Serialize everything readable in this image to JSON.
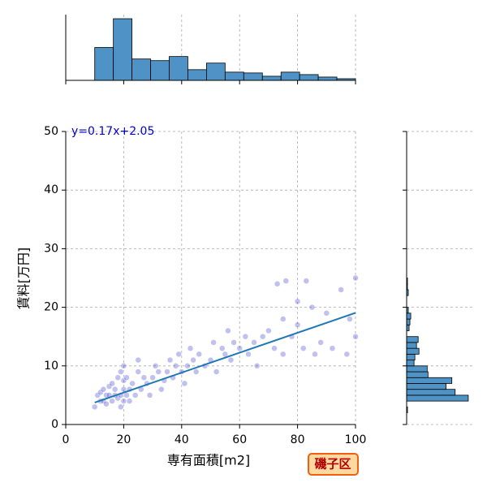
{
  "chart_data": [
    {
      "type": "scatter",
      "xlabel": "専有面積[m2]",
      "ylabel": "賃料[万円]",
      "xlim": [
        0,
        100
      ],
      "ylim": [
        0,
        50
      ],
      "xticks": [
        0,
        20,
        40,
        60,
        80,
        100
      ],
      "yticks": [
        0,
        10,
        20,
        30,
        40,
        50
      ],
      "grid": true,
      "color": "#3333cc",
      "x": [
        10,
        11,
        12,
        12,
        13,
        13,
        14,
        14,
        15,
        15,
        16,
        16,
        17,
        17,
        18,
        18,
        19,
        19,
        19,
        20,
        20,
        20,
        20,
        21,
        21,
        22,
        22,
        23,
        24,
        25,
        25,
        26,
        27,
        28,
        29,
        30,
        31,
        32,
        33,
        34,
        35,
        36,
        37,
        38,
        39,
        40,
        41,
        42,
        43,
        44,
        45,
        46,
        48,
        50,
        51,
        52,
        54,
        55,
        56,
        57,
        58,
        60,
        62,
        63,
        65,
        66,
        68,
        70,
        72,
        73,
        75,
        75,
        76,
        78,
        80,
        80,
        82,
        83,
        85,
        86,
        88,
        90,
        92,
        95,
        97,
        100,
        100,
        98
      ],
      "y": [
        3,
        5,
        4,
        5.5,
        4,
        6,
        5,
        3.5,
        5,
        6.5,
        4,
        7,
        5,
        6,
        4.5,
        8,
        5,
        9,
        3,
        4,
        6,
        7.5,
        10,
        5,
        8,
        6,
        4,
        7,
        5,
        9,
        11,
        6,
        8,
        7,
        5,
        8,
        10,
        9,
        6,
        7.5,
        9,
        11,
        8,
        10,
        12,
        9,
        7,
        10,
        13,
        11,
        9,
        12,
        10,
        11,
        14,
        9,
        13,
        12,
        16,
        11,
        14,
        13,
        15,
        12,
        14,
        10,
        15,
        16,
        13,
        24,
        12,
        18,
        24.5,
        15,
        21,
        17,
        13,
        24.5,
        20,
        12,
        14,
        19,
        13,
        23,
        12,
        25,
        15,
        18
      ],
      "regression": {
        "label": "y=0.17x+2.05",
        "slope": 0.17,
        "intercept": 2.05,
        "xrange": [
          10,
          100
        ],
        "color": "#1f77b4",
        "label_color": "#0000cc"
      }
    },
    {
      "type": "histogram",
      "orientation": "vertical",
      "color": "#4f93c6",
      "ylim": [
        0,
        80
      ],
      "bins": [
        10,
        16.43,
        22.86,
        29.29,
        35.71,
        42.14,
        48.57,
        55,
        61.43,
        67.86,
        74.29,
        80.71,
        87.14,
        93.57,
        100
      ],
      "counts": [
        40,
        75,
        26,
        24,
        29,
        13,
        21,
        10,
        9,
        5,
        10,
        7,
        4,
        2
      ]
    },
    {
      "type": "histogram",
      "orientation": "horizontal",
      "color": "#4f93c6",
      "xlim": [
        0,
        80
      ],
      "bins": [
        2,
        3,
        4,
        5,
        6,
        7,
        8,
        9,
        10,
        11,
        12,
        13,
        14,
        15,
        16,
        17,
        18,
        19,
        20,
        21,
        22,
        23,
        24,
        25
      ],
      "counts": [
        1,
        0,
        75,
        59,
        48,
        55,
        26,
        25,
        9,
        10,
        15,
        12,
        14,
        0,
        3,
        4,
        5,
        2,
        0,
        0,
        2,
        1,
        1
      ]
    }
  ],
  "badge": "磯子区"
}
